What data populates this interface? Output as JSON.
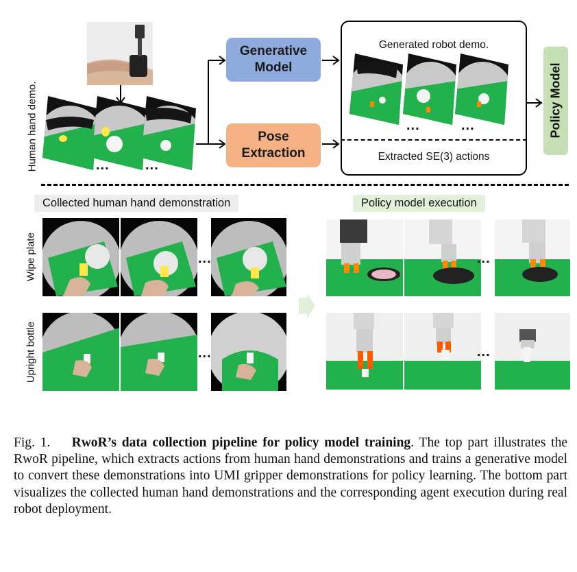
{
  "top": {
    "side_label": "Human hand demo.",
    "generative_model": "Generative Model",
    "pose_extraction": "Pose Extraction",
    "generated_robot_demo": "Generated robot demo.",
    "extracted_actions": "Extracted SE(3) actions",
    "policy_model": "Policy Model",
    "ellipsis": "..."
  },
  "bottom": {
    "left_header": "Collected human hand demonstration",
    "right_header": "Policy model execution",
    "row1_label": "Wipe plate",
    "row2_label": "Upright bottle",
    "ellipsis": "..."
  },
  "caption": {
    "fig_label": "Fig. 1.",
    "title": "RwoR’s data collection pipeline for policy model training",
    "period": ".",
    "body": "The top part illustrates the RwoR pipeline, which extracts actions from human hand demonstrations and trains a generative model to convert these demonstrations into UMI gripper demonstrations for policy learning. The bottom part visualizes the collected human hand demonstrations and the corresponding agent execution during real robot deployment."
  },
  "colors": {
    "generative_fill": "#8faadc",
    "pose_fill": "#f4b183",
    "policy_fill": "#c5e0b4",
    "left_header_fill": "#ededed",
    "right_header_fill": "#e2f0d9",
    "green_mat": "#22b14c"
  }
}
